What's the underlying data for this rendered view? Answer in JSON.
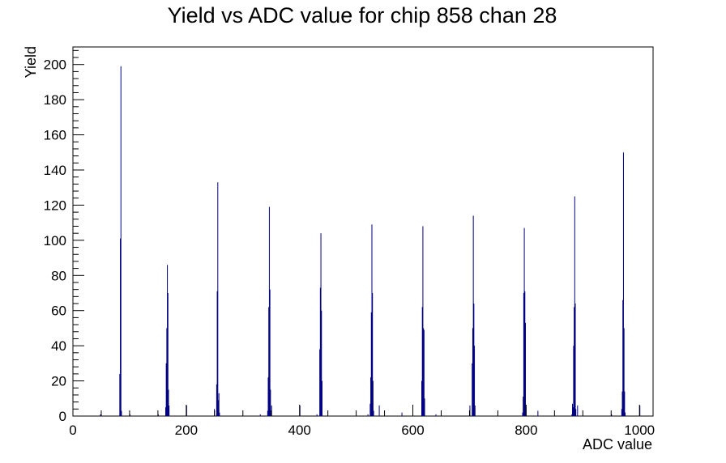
{
  "chart_data": {
    "type": "bar",
    "title": "Yield vs ADC value for chip 858 chan 28",
    "xlabel": "ADC value",
    "ylabel": "Yield",
    "xlim": [
      0,
      1024
    ],
    "ylim": [
      0,
      210
    ],
    "xticks": [
      "0",
      "200",
      "400",
      "600",
      "800",
      "1000"
    ],
    "yticks": [
      "0",
      "20",
      "40",
      "60",
      "80",
      "100",
      "120",
      "140",
      "160",
      "180",
      "200"
    ],
    "grid": false,
    "legend": "none",
    "line_color": "#000080",
    "bins": [
      {
        "x": 48,
        "y": 1
      },
      {
        "x": 82,
        "y": 24
      },
      {
        "x": 83,
        "y": 101
      },
      {
        "x": 84,
        "y": 199
      },
      {
        "x": 85,
        "y": 3
      },
      {
        "x": 100,
        "y": 1
      },
      {
        "x": 150,
        "y": 1
      },
      {
        "x": 163,
        "y": 5
      },
      {
        "x": 164,
        "y": 30
      },
      {
        "x": 165,
        "y": 50
      },
      {
        "x": 166,
        "y": 86
      },
      {
        "x": 167,
        "y": 70
      },
      {
        "x": 168,
        "y": 15
      },
      {
        "x": 169,
        "y": 6
      },
      {
        "x": 200,
        "y": 6
      },
      {
        "x": 249,
        "y": 4
      },
      {
        "x": 253,
        "y": 18
      },
      {
        "x": 254,
        "y": 71
      },
      {
        "x": 255,
        "y": 133
      },
      {
        "x": 256,
        "y": 9
      },
      {
        "x": 257,
        "y": 13
      },
      {
        "x": 258,
        "y": 2
      },
      {
        "x": 330,
        "y": 1
      },
      {
        "x": 343,
        "y": 3
      },
      {
        "x": 344,
        "y": 22
      },
      {
        "x": 345,
        "y": 62
      },
      {
        "x": 346,
        "y": 119
      },
      {
        "x": 347,
        "y": 72
      },
      {
        "x": 348,
        "y": 15
      },
      {
        "x": 350,
        "y": 6
      },
      {
        "x": 400,
        "y": 6
      },
      {
        "x": 430,
        "y": 1
      },
      {
        "x": 435,
        "y": 38
      },
      {
        "x": 436,
        "y": 73
      },
      {
        "x": 437,
        "y": 104
      },
      {
        "x": 438,
        "y": 60
      },
      {
        "x": 439,
        "y": 20
      },
      {
        "x": 520,
        "y": 1
      },
      {
        "x": 524,
        "y": 7
      },
      {
        "x": 525,
        "y": 22
      },
      {
        "x": 526,
        "y": 59
      },
      {
        "x": 527,
        "y": 109
      },
      {
        "x": 528,
        "y": 70
      },
      {
        "x": 529,
        "y": 20
      },
      {
        "x": 530,
        "y": 3
      },
      {
        "x": 540,
        "y": 6
      },
      {
        "x": 580,
        "y": 2
      },
      {
        "x": 615,
        "y": 20
      },
      {
        "x": 616,
        "y": 62
      },
      {
        "x": 617,
        "y": 108
      },
      {
        "x": 618,
        "y": 50
      },
      {
        "x": 619,
        "y": 49
      },
      {
        "x": 620,
        "y": 10
      },
      {
        "x": 640,
        "y": 1
      },
      {
        "x": 700,
        "y": 6
      },
      {
        "x": 704,
        "y": 30
      },
      {
        "x": 705,
        "y": 50
      },
      {
        "x": 706,
        "y": 114
      },
      {
        "x": 707,
        "y": 64
      },
      {
        "x": 708,
        "y": 40
      },
      {
        "x": 709,
        "y": 6
      },
      {
        "x": 793,
        "y": 2
      },
      {
        "x": 794,
        "y": 11
      },
      {
        "x": 795,
        "y": 70
      },
      {
        "x": 796,
        "y": 107
      },
      {
        "x": 797,
        "y": 71
      },
      {
        "x": 798,
        "y": 53
      },
      {
        "x": 799,
        "y": 5
      },
      {
        "x": 820,
        "y": 3
      },
      {
        "x": 880,
        "y": 1
      },
      {
        "x": 881,
        "y": 7
      },
      {
        "x": 882,
        "y": 5
      },
      {
        "x": 883,
        "y": 40
      },
      {
        "x": 884,
        "y": 62
      },
      {
        "x": 885,
        "y": 125
      },
      {
        "x": 886,
        "y": 64
      },
      {
        "x": 887,
        "y": 4
      },
      {
        "x": 890,
        "y": 6
      },
      {
        "x": 950,
        "y": 1
      },
      {
        "x": 968,
        "y": 4
      },
      {
        "x": 969,
        "y": 14
      },
      {
        "x": 970,
        "y": 66
      },
      {
        "x": 971,
        "y": 150
      },
      {
        "x": 972,
        "y": 50
      },
      {
        "x": 973,
        "y": 14
      },
      {
        "x": 974,
        "y": 2
      },
      {
        "x": 1000,
        "y": 6
      }
    ]
  }
}
